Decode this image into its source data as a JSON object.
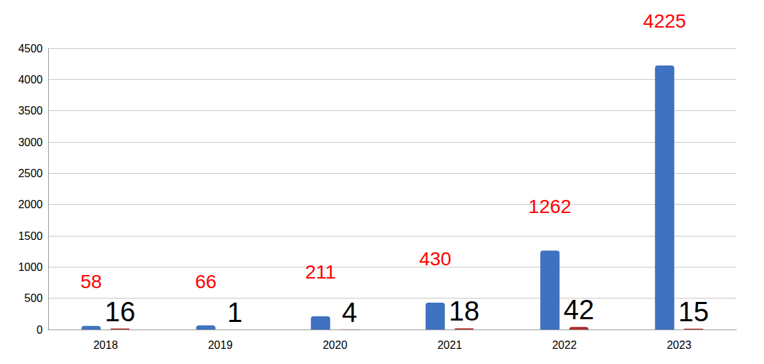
{
  "chart_data": {
    "type": "bar",
    "categories": [
      "2018",
      "2019",
      "2020",
      "2021",
      "2022",
      "2023"
    ],
    "series": [
      {
        "color": "#3f72c0",
        "values": [
          58,
          66,
          211,
          430,
          1262,
          4225
        ]
      },
      {
        "color": "#b22a2a",
        "values": [
          16,
          1,
          4,
          18,
          42,
          15
        ]
      }
    ],
    "ylim": [
      0,
      4500
    ],
    "yticks": [
      0,
      500,
      1000,
      1500,
      2000,
      2500,
      3000,
      3500,
      4000,
      4500
    ],
    "grid": true,
    "data_labels": true
  }
}
